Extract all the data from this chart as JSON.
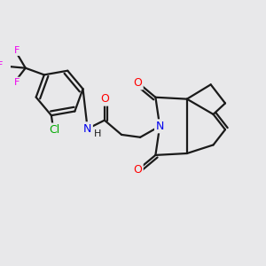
{
  "bg_color": "#e8e8ea",
  "bond_color": "#1a1a1a",
  "bond_lw": 1.6,
  "atom_colors": {
    "O": "#ff0000",
    "N": "#0000ee",
    "F": "#ee00ee",
    "Cl": "#00aa00",
    "C": "#1a1a1a"
  },
  "figsize": [
    3.0,
    3.0
  ],
  "dpi": 100,
  "xlim": [
    0,
    300
  ],
  "ylim": [
    0,
    300
  ]
}
